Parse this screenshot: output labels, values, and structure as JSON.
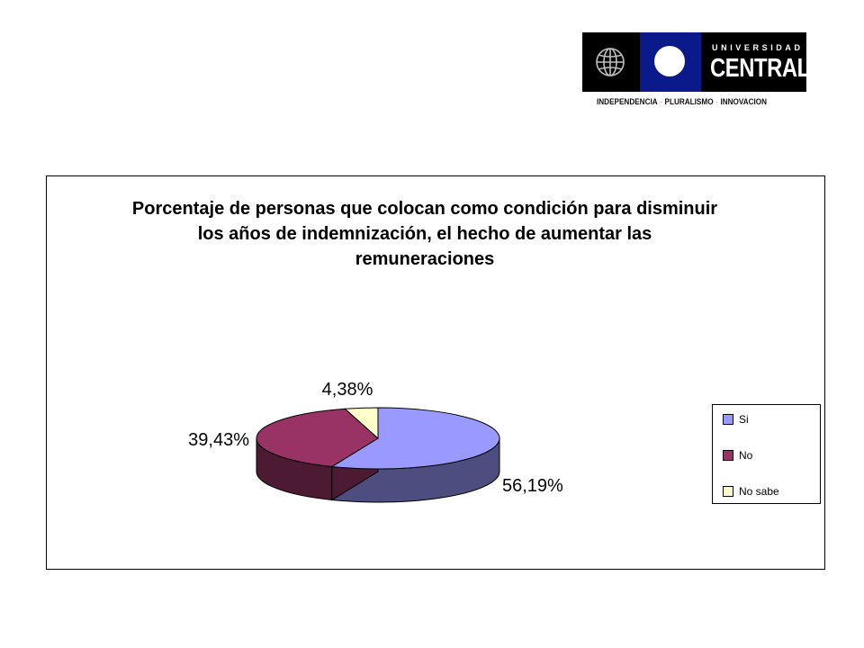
{
  "logo": {
    "university": "UNIVERSIDAD",
    "name": "CENTRAL",
    "motto": [
      "INDEPENDENCIA",
      "PLURALISMO",
      "INNOVACION"
    ],
    "colors": {
      "dark": "#000000",
      "blue": "#0b1a8a"
    }
  },
  "chart_data": {
    "type": "pie",
    "title": "Porcentaje de personas que colocan como condición para disminuir los años de indemnización, el hecho de aumentar las remuneraciones",
    "categories": [
      "Si",
      "No",
      "No sabe"
    ],
    "values": [
      56.19,
      39.43,
      4.38
    ],
    "data_labels": [
      "56,19%",
      "39,43%",
      "4,38%"
    ],
    "colors": [
      "#9999ff",
      "#993366",
      "#ffffcc"
    ],
    "side_colors": [
      "#4d4d80",
      "#4d1a33",
      "#80805f"
    ],
    "legend_position": "right",
    "three_d": true
  }
}
